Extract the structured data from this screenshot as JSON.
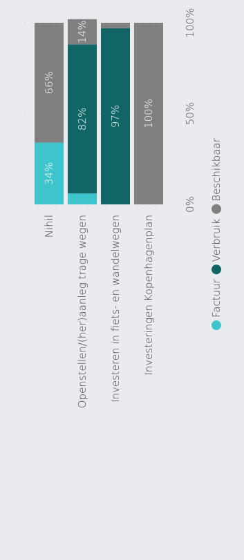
{
  "chart_data": {
    "type": "bar",
    "orientation": "horizontal-stacked-percent",
    "categories": [
      "Nihil",
      "Openstellen/(her)aanleg trage wegen",
      "Investeren in fiets- en wandelwegen",
      "Investeringen Kopenhagenplan"
    ],
    "series": [
      {
        "name": "Factuur",
        "color": "#3ec4cc",
        "values": [
          34,
          6,
          0,
          0
        ]
      },
      {
        "name": "Verbruik",
        "color": "#116665",
        "values": [
          0,
          82,
          97,
          0
        ]
      },
      {
        "name": "Beschikbaar",
        "color": "#808081",
        "values": [
          66,
          14,
          3,
          100
        ]
      }
    ],
    "data_labels": [
      [
        "34%",
        "",
        "",
        ""
      ],
      [
        "",
        "82%",
        "97%",
        ""
      ],
      [
        "66%",
        "14%",
        "",
        "100%"
      ]
    ],
    "xlim": [
      0,
      100
    ],
    "xticks": [
      "0%",
      "50%",
      "100%"
    ],
    "grid": true,
    "legend_position": "bottom"
  }
}
